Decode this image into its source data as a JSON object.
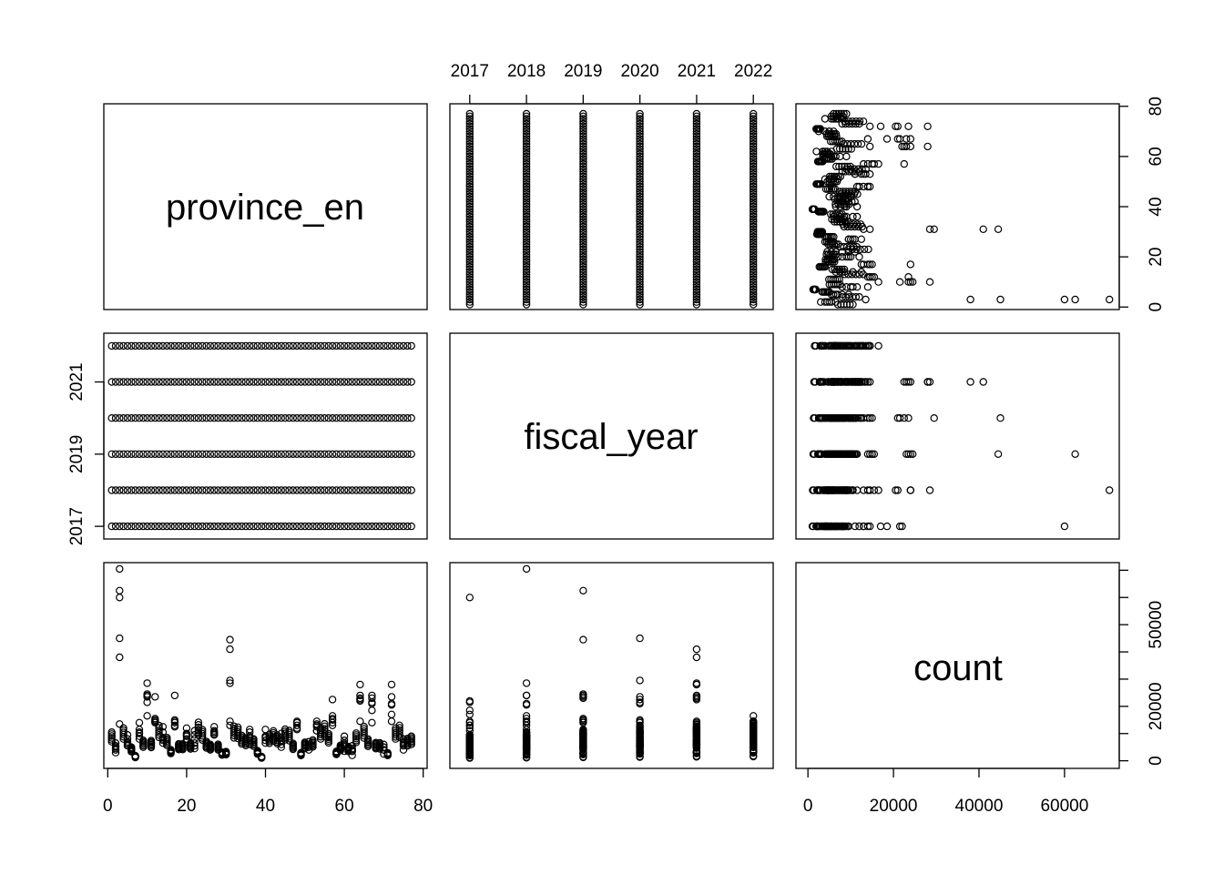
{
  "chart_data": {
    "type": "scatter",
    "variables": [
      "province_en",
      "fiscal_year",
      "count"
    ],
    "axes": {
      "province_en": {
        "range": [
          1,
          77
        ],
        "ticks": [
          "0",
          "20",
          "40",
          "60",
          "80"
        ]
      },
      "fiscal_year": {
        "range": [
          2017,
          2022
        ],
        "ticks_top": [
          "2017",
          "2018",
          "2019",
          "2020",
          "2021",
          "2022"
        ],
        "ticks_left": [
          "2017",
          "2019",
          "2021"
        ]
      },
      "count": {
        "range": [
          0,
          70000
        ],
        "ticks_bottom": [
          "0",
          "20000",
          "40000",
          "60000"
        ],
        "ticks_right": [
          "0",
          "20000",
          "50000"
        ]
      },
      "province_right_ticks": [
        "0",
        "20",
        "40",
        "60",
        "80"
      ]
    },
    "n_provinces": 77,
    "years": [
      2017,
      2018,
      2019,
      2020,
      2021,
      2022
    ],
    "grid": false,
    "legend": "none",
    "records": [
      [
        3,
        2017,
        60000
      ],
      [
        3,
        2018,
        70500
      ],
      [
        3,
        2019,
        62500
      ],
      [
        3,
        2020,
        45000
      ],
      [
        3,
        2021,
        38000
      ],
      [
        3,
        2022,
        13500
      ],
      [
        31,
        2017,
        13000
      ],
      [
        31,
        2018,
        28500
      ],
      [
        31,
        2019,
        44500
      ],
      [
        31,
        2020,
        29500
      ],
      [
        31,
        2021,
        41000
      ],
      [
        31,
        2022,
        14500
      ],
      [
        10,
        2017,
        21500
      ],
      [
        10,
        2018,
        24000
      ],
      [
        10,
        2019,
        24500
      ],
      [
        10,
        2020,
        23500
      ],
      [
        10,
        2021,
        28500
      ],
      [
        10,
        2022,
        16500
      ],
      [
        64,
        2017,
        22000
      ],
      [
        64,
        2018,
        24000
      ],
      [
        64,
        2019,
        23000
      ],
      [
        64,
        2020,
        22500
      ],
      [
        64,
        2021,
        28000
      ],
      [
        64,
        2022,
        14500
      ],
      [
        67,
        2017,
        18500
      ],
      [
        67,
        2018,
        21000
      ],
      [
        67,
        2019,
        24000
      ],
      [
        67,
        2020,
        21500
      ],
      [
        67,
        2021,
        23000
      ],
      [
        67,
        2022,
        14000
      ],
      [
        72,
        2017,
        17000
      ],
      [
        72,
        2018,
        20500
      ],
      [
        72,
        2019,
        23500
      ],
      [
        72,
        2020,
        21000
      ],
      [
        72,
        2021,
        28000
      ],
      [
        72,
        2022,
        14500
      ],
      [
        57,
        2017,
        14000
      ],
      [
        57,
        2018,
        16500
      ],
      [
        57,
        2019,
        15500
      ],
      [
        57,
        2020,
        15000
      ],
      [
        57,
        2021,
        22500
      ],
      [
        57,
        2022,
        13000
      ],
      [
        12,
        2017,
        14500
      ],
      [
        12,
        2018,
        15500
      ],
      [
        12,
        2019,
        15000
      ],
      [
        12,
        2020,
        14500
      ],
      [
        12,
        2021,
        23500
      ],
      [
        12,
        2022,
        14000
      ],
      [
        17,
        2017,
        13000
      ],
      [
        17,
        2018,
        14500
      ],
      [
        17,
        2019,
        15000
      ],
      [
        17,
        2020,
        14000
      ],
      [
        17,
        2021,
        24000
      ],
      [
        17,
        2022,
        12500
      ],
      [
        48,
        2017,
        12000
      ],
      [
        48,
        2018,
        14000
      ],
      [
        48,
        2019,
        14000
      ],
      [
        48,
        2020,
        13000
      ],
      [
        48,
        2021,
        14500
      ],
      [
        48,
        2022,
        11500
      ],
      [
        53,
        2017,
        11000
      ],
      [
        53,
        2018,
        13000
      ],
      [
        53,
        2019,
        14500
      ],
      [
        53,
        2020,
        12500
      ],
      [
        53,
        2021,
        13500
      ],
      [
        53,
        2022,
        11000
      ],
      [
        8,
        2017,
        8000
      ],
      [
        8,
        2018,
        10500
      ],
      [
        8,
        2019,
        11500
      ],
      [
        8,
        2020,
        10000
      ],
      [
        8,
        2021,
        14000
      ],
      [
        8,
        2022,
        9000
      ],
      [
        14,
        2017,
        6500
      ],
      [
        14,
        2018,
        8000
      ],
      [
        14,
        2019,
        10500
      ],
      [
        14,
        2020,
        8500
      ],
      [
        14,
        2021,
        12500
      ],
      [
        14,
        2022,
        7500
      ],
      [
        22,
        2017,
        4500
      ],
      [
        22,
        2018,
        8000
      ],
      [
        22,
        2019,
        9500
      ],
      [
        22,
        2020,
        6500
      ],
      [
        22,
        2021,
        11000
      ],
      [
        22,
        2022,
        5500
      ],
      [
        36,
        2017,
        6000
      ],
      [
        36,
        2018,
        11500
      ],
      [
        36,
        2019,
        9000
      ],
      [
        36,
        2020,
        7500
      ],
      [
        36,
        2021,
        10500
      ],
      [
        36,
        2022,
        8500
      ],
      [
        44,
        2017,
        5000
      ],
      [
        44,
        2018,
        7500
      ],
      [
        44,
        2019,
        8500
      ],
      [
        44,
        2020,
        6000
      ],
      [
        44,
        2021,
        10000
      ],
      [
        44,
        2022,
        7000
      ],
      [
        60,
        2017,
        3500
      ],
      [
        60,
        2018,
        6000
      ],
      [
        60,
        2019,
        7500
      ],
      [
        60,
        2020,
        5500
      ],
      [
        60,
        2021,
        9000
      ],
      [
        60,
        2022,
        6500
      ],
      [
        75,
        2017,
        4000
      ],
      [
        75,
        2018,
        5500
      ],
      [
        75,
        2019,
        7000
      ],
      [
        75,
        2020,
        6000
      ],
      [
        75,
        2021,
        8000
      ],
      [
        75,
        2022,
        6500
      ],
      [
        2,
        2017,
        3000
      ],
      [
        2,
        2018,
        4500
      ],
      [
        2,
        2019,
        5500
      ],
      [
        2,
        2020,
        4000
      ],
      [
        2,
        2021,
        6500
      ],
      [
        2,
        2022,
        5000
      ],
      [
        5,
        2017,
        5500
      ],
      [
        5,
        2018,
        6500
      ],
      [
        5,
        2019,
        8000
      ],
      [
        5,
        2020,
        7000
      ],
      [
        5,
        2021,
        9500
      ],
      [
        5,
        2022,
        6000
      ],
      [
        20,
        2017,
        7000
      ],
      [
        20,
        2018,
        9000
      ],
      [
        20,
        2019,
        10000
      ],
      [
        20,
        2020,
        8000
      ],
      [
        20,
        2021,
        12000
      ],
      [
        20,
        2022,
        9500
      ],
      [
        27,
        2017,
        9500
      ],
      [
        27,
        2018,
        10500
      ],
      [
        27,
        2019,
        11000
      ],
      [
        27,
        2020,
        9500
      ],
      [
        27,
        2021,
        12500
      ],
      [
        27,
        2022,
        10000
      ],
      [
        40,
        2017,
        6500
      ],
      [
        40,
        2018,
        8500
      ],
      [
        40,
        2019,
        9000
      ],
      [
        40,
        2020,
        7500
      ],
      [
        40,
        2021,
        11500
      ],
      [
        40,
        2022,
        9000
      ],
      [
        51,
        2017,
        4000
      ],
      [
        51,
        2018,
        5000
      ],
      [
        51,
        2019,
        6000
      ],
      [
        51,
        2020,
        5000
      ],
      [
        51,
        2021,
        7000
      ],
      [
        51,
        2022,
        5500
      ],
      [
        62,
        2017,
        2000
      ],
      [
        62,
        2018,
        3500
      ],
      [
        62,
        2019,
        4500
      ],
      [
        62,
        2020,
        3500
      ],
      [
        62,
        2021,
        5500
      ],
      [
        62,
        2022,
        4000
      ],
      [
        70,
        2017,
        2500
      ],
      [
        70,
        2018,
        4000
      ],
      [
        70,
        2019,
        5000
      ],
      [
        70,
        2020,
        4000
      ],
      [
        70,
        2021,
        6000
      ],
      [
        70,
        2022,
        5000
      ]
    ]
  }
}
